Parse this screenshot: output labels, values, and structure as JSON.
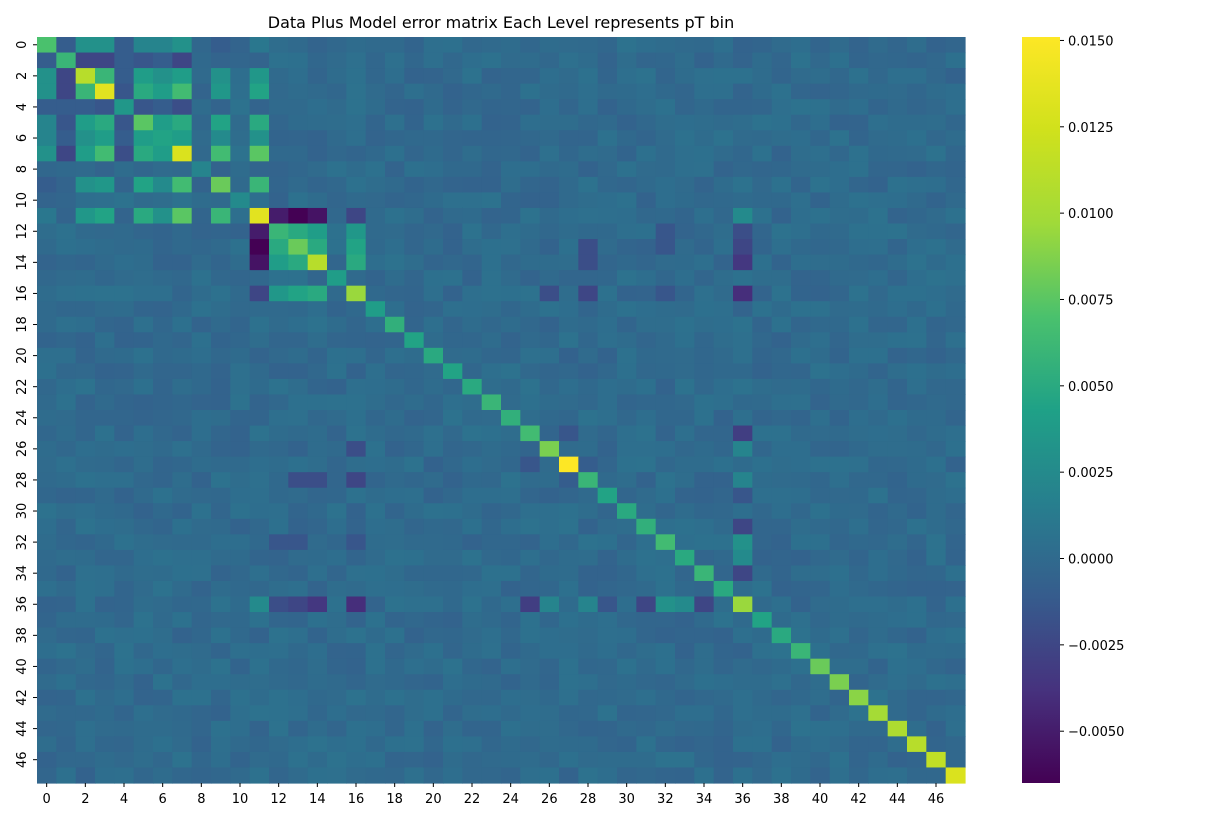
{
  "chart_data": {
    "type": "heatmap",
    "title": "Data Plus Model error matrix Each Level represents pT bin",
    "n": 48,
    "xlabel": "",
    "ylabel": "",
    "x_tick_labels": [
      "0",
      "2",
      "4",
      "6",
      "8",
      "10",
      "12",
      "14",
      "16",
      "18",
      "20",
      "22",
      "24",
      "26",
      "28",
      "30",
      "32",
      "34",
      "36",
      "38",
      "40",
      "42",
      "44",
      "46"
    ],
    "y_tick_labels": [
      "0",
      "2",
      "4",
      "6",
      "8",
      "10",
      "12",
      "14",
      "16",
      "18",
      "20",
      "22",
      "24",
      "26",
      "28",
      "30",
      "32",
      "34",
      "36",
      "38",
      "40",
      "42",
      "44",
      "46"
    ],
    "colormap": "viridis",
    "vmin": -0.0065,
    "vmax": 0.0151,
    "colorbar_tick_labels": [
      "0.0150",
      "0.0125",
      "0.0100",
      "0.0075",
      "0.0050",
      "0.0025",
      "0.0000",
      "−0.0025",
      "−0.0050"
    ],
    "colorbar_tick_values": [
      0.015,
      0.0125,
      0.01,
      0.0075,
      0.005,
      0.0025,
      0.0,
      -0.0025,
      -0.005
    ],
    "diagonal": [
      0.007,
      0.006,
      0.011,
      0.0135,
      0.0035,
      0.0075,
      0.0045,
      0.013,
      0.002,
      0.008,
      0.0025,
      0.0135,
      0.006,
      0.008,
      0.011,
      0.004,
      0.0095,
      0.004,
      0.0055,
      0.0045,
      0.005,
      0.0045,
      0.005,
      0.006,
      0.0055,
      0.0065,
      0.0085,
      0.0151,
      0.006,
      0.0045,
      0.005,
      0.0055,
      0.0065,
      0.005,
      0.006,
      0.005,
      0.0095,
      0.0045,
      0.005,
      0.006,
      0.008,
      0.0085,
      0.009,
      0.01,
      0.0105,
      0.011,
      0.0115,
      0.013
    ],
    "cells": [
      [
        0,
        1,
        -0.001
      ],
      [
        0,
        2,
        0.003
      ],
      [
        0,
        3,
        0.003
      ],
      [
        0,
        4,
        -0.001
      ],
      [
        0,
        5,
        0.002
      ],
      [
        0,
        6,
        0.002
      ],
      [
        0,
        7,
        0.003
      ],
      [
        0,
        9,
        -0.001
      ],
      [
        0,
        10,
        -0.0005
      ],
      [
        0,
        11,
        0.001
      ],
      [
        1,
        2,
        -0.0025
      ],
      [
        1,
        3,
        -0.0025
      ],
      [
        1,
        4,
        -0.001
      ],
      [
        1,
        5,
        -0.0015
      ],
      [
        1,
        6,
        -0.001
      ],
      [
        1,
        7,
        -0.0025
      ],
      [
        1,
        9,
        -0.0005
      ],
      [
        1,
        11,
        -0.0005
      ],
      [
        2,
        3,
        0.006
      ],
      [
        2,
        4,
        -0.001
      ],
      [
        2,
        5,
        0.004
      ],
      [
        2,
        6,
        0.003
      ],
      [
        2,
        7,
        0.004
      ],
      [
        2,
        9,
        0.003
      ],
      [
        2,
        11,
        0.0035
      ],
      [
        3,
        4,
        -0.0015
      ],
      [
        3,
        5,
        0.005
      ],
      [
        3,
        6,
        0.004
      ],
      [
        3,
        7,
        0.0065
      ],
      [
        3,
        9,
        0.0035
      ],
      [
        3,
        11,
        0.0045
      ],
      [
        4,
        5,
        -0.0015
      ],
      [
        4,
        6,
        -0.001
      ],
      [
        4,
        7,
        -0.002
      ],
      [
        4,
        9,
        -0.0005
      ],
      [
        4,
        11,
        -0.0005
      ],
      [
        5,
        6,
        0.004
      ],
      [
        5,
        7,
        0.005
      ],
      [
        5,
        9,
        0.0045
      ],
      [
        5,
        11,
        0.005
      ],
      [
        6,
        7,
        0.004
      ],
      [
        6,
        9,
        0.0025
      ],
      [
        6,
        11,
        0.003
      ],
      [
        7,
        9,
        0.0065
      ],
      [
        7,
        11,
        0.0075
      ],
      [
        9,
        11,
        0.006
      ],
      [
        11,
        12,
        -0.005
      ],
      [
        11,
        13,
        -0.0065
      ],
      [
        11,
        14,
        -0.0055
      ],
      [
        11,
        16,
        -0.0025
      ],
      [
        12,
        13,
        0.005
      ],
      [
        12,
        14,
        0.004
      ],
      [
        12,
        16,
        0.0035
      ],
      [
        13,
        14,
        0.005
      ],
      [
        13,
        16,
        0.0045
      ],
      [
        14,
        16,
        0.005
      ],
      [
        16,
        36,
        -0.004
      ],
      [
        14,
        36,
        -0.0035
      ],
      [
        11,
        36,
        0.0025
      ],
      [
        12,
        36,
        -0.002
      ],
      [
        13,
        36,
        -0.0025
      ],
      [
        25,
        36,
        -0.003
      ],
      [
        26,
        36,
        0.002
      ],
      [
        31,
        36,
        -0.0025
      ],
      [
        34,
        36,
        -0.0025
      ],
      [
        33,
        36,
        0.0025
      ],
      [
        28,
        36,
        0.002
      ],
      [
        29,
        36,
        -0.0015
      ],
      [
        32,
        36,
        0.003
      ],
      [
        27,
        28,
        -0.001
      ],
      [
        27,
        25,
        -0.0015
      ],
      [
        16,
        28,
        -0.0025
      ],
      [
        13,
        28,
        -0.002
      ],
      [
        14,
        28,
        -0.002
      ],
      [
        16,
        26,
        -0.002
      ],
      [
        16,
        32,
        -0.0015
      ],
      [
        12,
        32,
        -0.0015
      ],
      [
        13,
        32,
        -0.0015
      ]
    ]
  }
}
